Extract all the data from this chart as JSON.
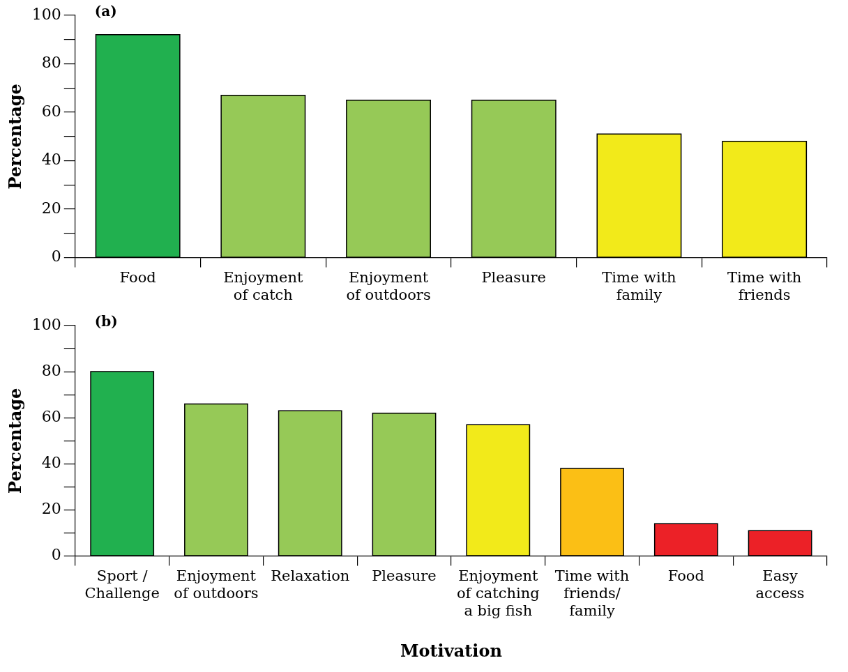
{
  "chart_data": [
    {
      "type": "bar",
      "title": "(a)",
      "ylabel": "Percentage",
      "categories": [
        "Food",
        "Enjoyment\nof catch",
        "Enjoyment\nof outdoors",
        "Pleasure",
        "Time with\nfamily",
        "Time with\nfriends"
      ],
      "values": [
        92,
        67,
        65,
        65,
        51,
        48
      ],
      "colors": [
        "#21b04f",
        "#96c957",
        "#96c957",
        "#96c957",
        "#f2ea1a",
        "#f2ea1a"
      ],
      "ylim": [
        0,
        100
      ],
      "yticks": [
        0,
        {
          "value": 10,
          "label": null
        },
        20,
        {
          "value": 30,
          "label": null
        },
        40,
        {
          "value": 50,
          "label": null
        },
        60,
        {
          "value": 70,
          "label": null
        },
        80,
        {
          "value": 90,
          "label": null
        },
        100
      ]
    },
    {
      "type": "bar",
      "title": "(b)",
      "ylabel": "Percentage",
      "xlabel": "Motivation",
      "categories": [
        "Sport /\nChallenge",
        "Enjoyment\nof outdoors",
        "Relaxation",
        "Pleasure",
        "Enjoyment\nof catching\na big fish",
        "Time with\nfriends/\nfamily",
        "Food",
        "Easy\naccess"
      ],
      "values": [
        80,
        66,
        63,
        62,
        57,
        38,
        14,
        11
      ],
      "colors": [
        "#21b04f",
        "#96c957",
        "#96c957",
        "#96c957",
        "#f2ea1a",
        "#fbbf15",
        "#ec2127",
        "#ec2127"
      ],
      "ylim": [
        0,
        100
      ],
      "yticks": [
        0,
        {
          "value": 10,
          "label": null
        },
        20,
        {
          "value": 30,
          "label": null
        },
        40,
        {
          "value": 50,
          "label": null
        },
        60,
        {
          "value": 70,
          "label": null
        },
        80,
        {
          "value": 90,
          "label": null
        },
        100
      ]
    }
  ]
}
